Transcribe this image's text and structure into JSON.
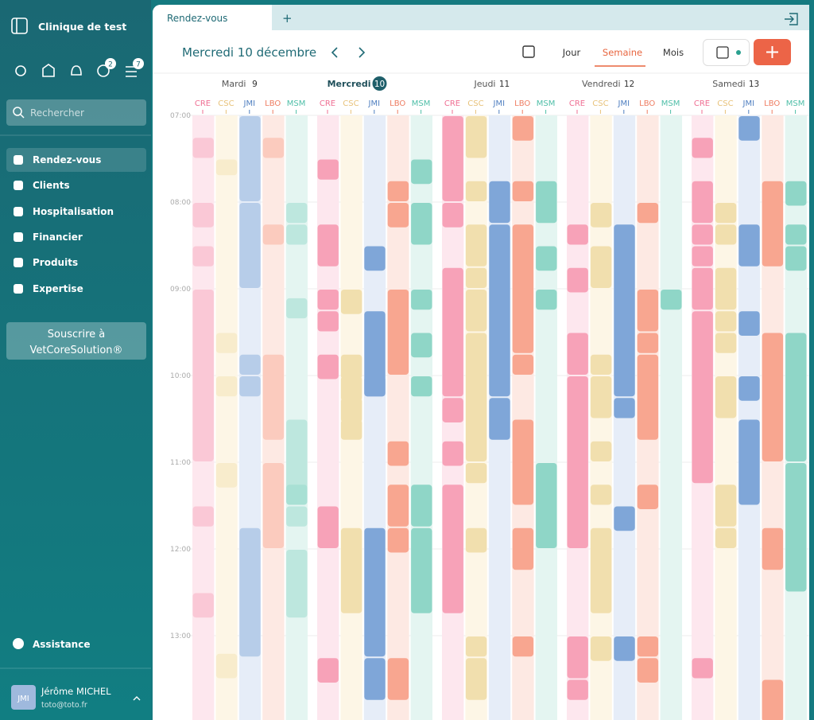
{
  "sidebar": {
    "clinic": "Clinique de test",
    "badges": [
      2,
      7
    ],
    "search_placeholder": "Rechercher",
    "nav": [
      "Rendez-vous",
      "Clients",
      "Hospitalisation",
      "Financier",
      "Produits",
      "Expertise"
    ],
    "subscribe": [
      "Souscrire à",
      "VetCoreSolution®"
    ],
    "help": "Assistance",
    "user": {
      "initials": "JMI",
      "name": "Jérôme MICHEL",
      "email": "toto@toto.fr"
    }
  },
  "tabs": [
    "Rendez-vous"
  ],
  "date_title": "Mercredi 10 décembre",
  "views": [
    "Jour",
    "Semaine",
    "Mois"
  ],
  "days": [
    {
      "name": "Mardi",
      "date": 9
    },
    {
      "name": "Mercredi",
      "date": 10
    },
    {
      "name": "Jeudi",
      "date": 11
    },
    {
      "name": "Vendredi",
      "date": 12
    },
    {
      "name": "Samedi",
      "date": 13
    }
  ],
  "staff": [
    "CRE",
    "CSC",
    "JMI",
    "LBO",
    "MSM"
  ],
  "hours": [
    "07:00",
    "08:00",
    "09:00",
    "10:00",
    "11:00",
    "12:00",
    "13:00"
  ]
}
